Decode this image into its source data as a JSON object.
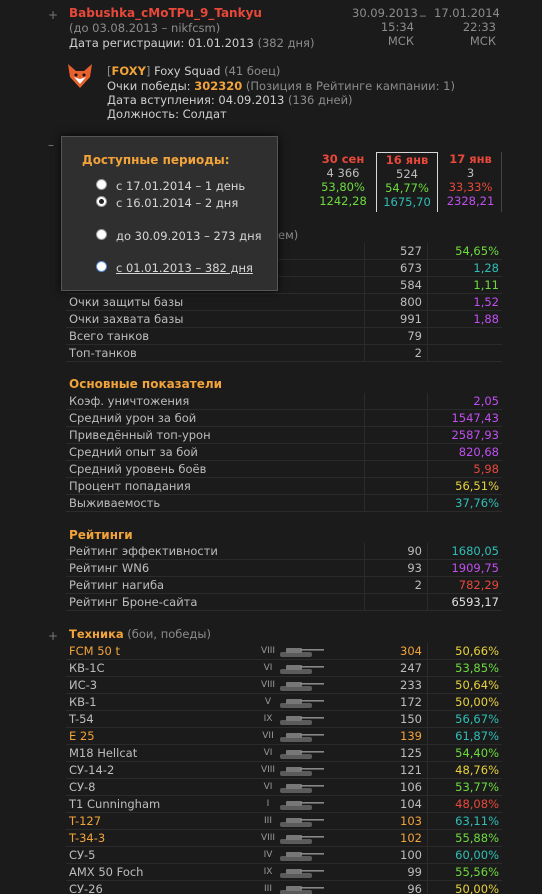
{
  "player": {
    "name": "Babushka_cMoTPu_9_Tankyu",
    "prev_name": "(до 03.08.2013 – nikfcsm)",
    "reg_label": "Дата регистрации: 01.01.2013",
    "reg_days": "(382 дня)",
    "date1": "30.09.2013",
    "time1": "15:34 МСК",
    "date_sep": "_",
    "date2": "17.01.2014",
    "time2": "22:33 МСК"
  },
  "clan": {
    "tag": "FOXY",
    "name": "Foxy Squad",
    "members": "(41 боец)",
    "victory_label": "Очки победы:",
    "victory_value": "302320",
    "victory_note": "(Позиция в Рейтинге кампании: 1)",
    "join_label": "Дата вступления: 04.09.2013",
    "join_days": "(136 дней)",
    "role": "Должность: Солдат"
  },
  "periods": {
    "title": "Доступные периоды:",
    "options": [
      "с 17.01.2014 – 1 день",
      "с 16.01.2014 – 2 дня",
      "до 30.09.2013 – 273 дня",
      "с 01.01.2013 – 382 дня"
    ]
  },
  "compare": {
    "col1": {
      "head": "30 сен",
      "v1": "4 366",
      "v2": "53,80%",
      "v3": "1242,28"
    },
    "col2": {
      "head": "16 янв",
      "v1": "524",
      "v2": "54,77%",
      "v3": "1675,70"
    },
    "col3": {
      "head": "17 янв",
      "v1": "3",
      "v2": "33,33%",
      "v3": "2328,21"
    }
  },
  "hidden_header_tail": "ем)",
  "battle_rows": [
    {
      "label": "",
      "v1": "527",
      "v2": "54,65%",
      "color": "#6ddb3e"
    },
    {
      "label": "",
      "v1": "673",
      "v2": "1,28",
      "color": "#2fbfb6"
    },
    {
      "label": "",
      "v1": "584",
      "v2": "1,11",
      "color": "#6ddb3e"
    },
    {
      "label": "Очки защиты базы",
      "v1": "800",
      "v2": "1,52",
      "color": "#c14ff0"
    },
    {
      "label": "Очки захвата базы",
      "v1": "991",
      "v2": "1,88",
      "color": "#c14ff0"
    },
    {
      "label": "Всего танков",
      "v1": "79",
      "v2": "",
      "color": "#bdbdbd"
    },
    {
      "label": "Топ-танков",
      "v1": "2",
      "v2": "",
      "color": "#bdbdbd"
    }
  ],
  "main_stats": {
    "title": "Основные показатели",
    "rows": [
      {
        "label": "Коэф. уничтожения",
        "v2": "2,05",
        "color": "#c14ff0"
      },
      {
        "label": "Средний урон за бой",
        "v2": "1547,43",
        "color": "#c14ff0"
      },
      {
        "label": "Приведённый топ-урон",
        "v2": "2587,93",
        "color": "#c14ff0"
      },
      {
        "label": "Средний опыт за бой",
        "v2": "820,68",
        "color": "#c14ff0"
      },
      {
        "label": "Средний уровень боёв",
        "v2": "5,98",
        "color": "#e8483a"
      },
      {
        "label": "Процент попадания",
        "v2": "56,51%",
        "color": "#e8d23c"
      },
      {
        "label": "Выживаемость",
        "v2": "37,76%",
        "color": "#2fbfb6"
      }
    ]
  },
  "ratings": {
    "title": "Рейтинги",
    "rows": [
      {
        "label": "Рейтинг эффективности",
        "v1": "90",
        "v2": "1680,05",
        "color": "#2fbfb6"
      },
      {
        "label": "Рейтинг WN6",
        "v1": "93",
        "v2": "1909,75",
        "color": "#c14ff0"
      },
      {
        "label": "Рейтинг нагиба",
        "v1": "2",
        "v2": "782,29",
        "color": "#e8483a"
      },
      {
        "label": "Рейтинг Броне-сайта",
        "v1": "",
        "v2": "6593,17",
        "color": "#e0e0e0"
      }
    ]
  },
  "tech": {
    "title": "Техника",
    "subtitle": "(бои, победы)",
    "rows": [
      {
        "name": "FCM 50 t",
        "tier": "VIII",
        "battles": "304",
        "wr": "50,66%",
        "name_color": "#f2a33a",
        "b_color": "#f2a33a",
        "wr_color": "#e8d23c"
      },
      {
        "name": "КВ-1С",
        "tier": "VI",
        "battles": "247",
        "wr": "53,85%",
        "name_color": "#bdbdbd",
        "b_color": "#bdbdbd",
        "wr_color": "#6ddb3e"
      },
      {
        "name": "ИС-3",
        "tier": "VIII",
        "battles": "233",
        "wr": "50,64%",
        "name_color": "#bdbdbd",
        "b_color": "#bdbdbd",
        "wr_color": "#e8d23c"
      },
      {
        "name": "КВ-1",
        "tier": "V",
        "battles": "172",
        "wr": "50,00%",
        "name_color": "#bdbdbd",
        "b_color": "#bdbdbd",
        "wr_color": "#e8d23c"
      },
      {
        "name": "T-54",
        "tier": "IX",
        "battles": "150",
        "wr": "56,67%",
        "name_color": "#bdbdbd",
        "b_color": "#bdbdbd",
        "wr_color": "#2fbfb6"
      },
      {
        "name": "E 25",
        "tier": "VII",
        "battles": "139",
        "wr": "61,87%",
        "name_color": "#f2a33a",
        "b_color": "#f2a33a",
        "wr_color": "#2fbfb6"
      },
      {
        "name": "M18 Hellcat",
        "tier": "VI",
        "battles": "125",
        "wr": "54,40%",
        "name_color": "#bdbdbd",
        "b_color": "#bdbdbd",
        "wr_color": "#6ddb3e"
      },
      {
        "name": "СУ-14-2",
        "tier": "VIII",
        "battles": "121",
        "wr": "48,76%",
        "name_color": "#bdbdbd",
        "b_color": "#bdbdbd",
        "wr_color": "#e8d23c"
      },
      {
        "name": "СУ-8",
        "tier": "VI",
        "battles": "106",
        "wr": "53,77%",
        "name_color": "#bdbdbd",
        "b_color": "#bdbdbd",
        "wr_color": "#6ddb3e"
      },
      {
        "name": "T1 Cunningham",
        "tier": "I",
        "battles": "104",
        "wr": "48,08%",
        "name_color": "#bdbdbd",
        "b_color": "#bdbdbd",
        "wr_color": "#e8483a"
      },
      {
        "name": "T-127",
        "tier": "III",
        "battles": "103",
        "wr": "63,11%",
        "name_color": "#f2a33a",
        "b_color": "#f2a33a",
        "wr_color": "#2fbfb6"
      },
      {
        "name": "T-34-3",
        "tier": "VIII",
        "battles": "102",
        "wr": "55,88%",
        "name_color": "#f2a33a",
        "b_color": "#f2a33a",
        "wr_color": "#6ddb3e"
      },
      {
        "name": "СУ-5",
        "tier": "IV",
        "battles": "100",
        "wr": "60,00%",
        "name_color": "#bdbdbd",
        "b_color": "#bdbdbd",
        "wr_color": "#2fbfb6"
      },
      {
        "name": "AMX 50 Foch",
        "tier": "IX",
        "battles": "99",
        "wr": "55,56%",
        "name_color": "#bdbdbd",
        "b_color": "#bdbdbd",
        "wr_color": "#6ddb3e"
      },
      {
        "name": "СУ-26",
        "tier": "III",
        "battles": "96",
        "wr": "50,00%",
        "name_color": "#bdbdbd",
        "b_color": "#bdbdbd",
        "wr_color": "#e8d23c"
      }
    ]
  },
  "controls": {
    "plus": "+",
    "minus": "–"
  }
}
